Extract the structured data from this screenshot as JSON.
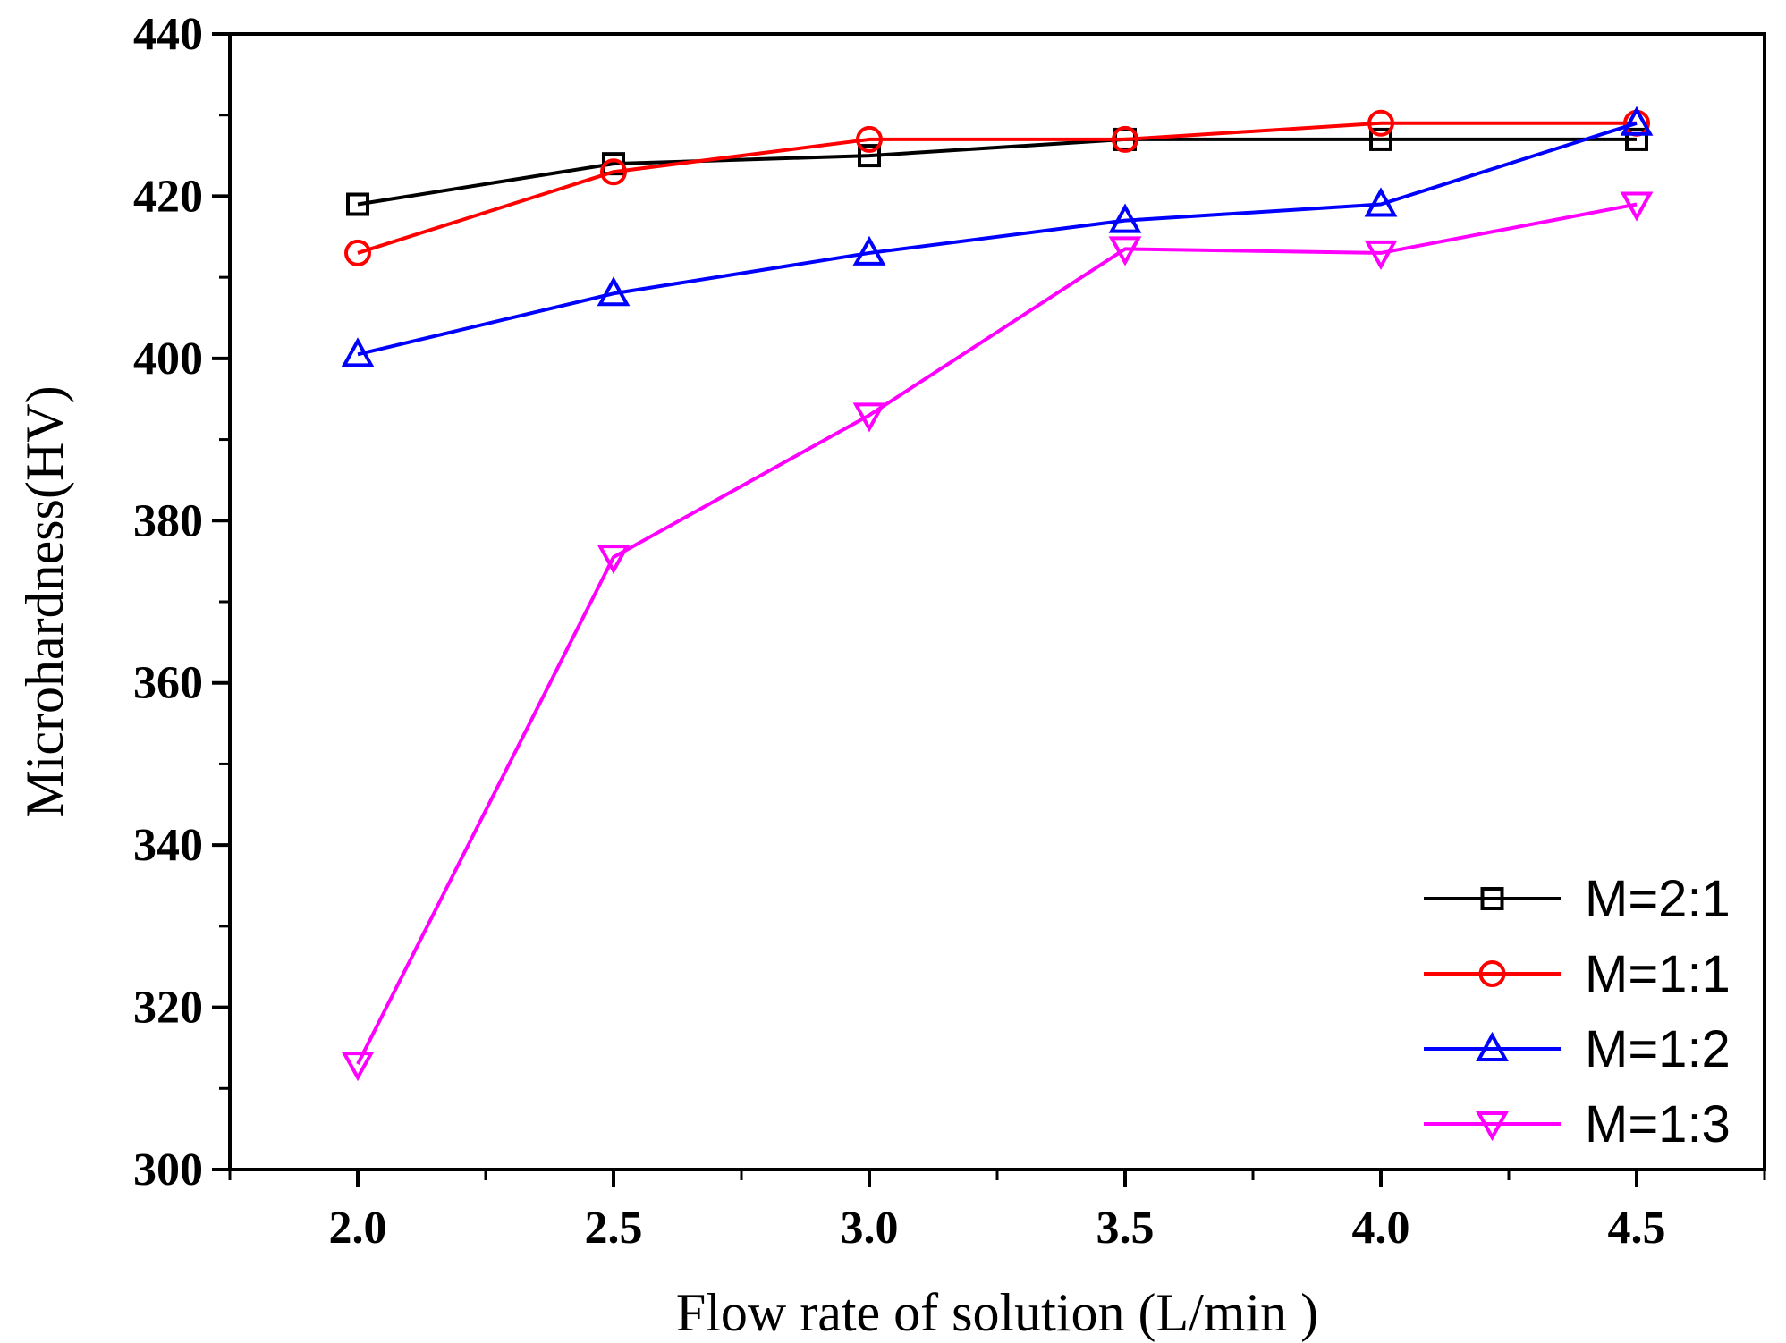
{
  "chart_data": {
    "type": "line",
    "title": "",
    "xlabel": "Flow rate of solution (L/min )",
    "ylabel": "Microhardness(HV)",
    "x": [
      2.0,
      2.5,
      3.0,
      3.5,
      4.0,
      4.5
    ],
    "xlim": [
      1.75,
      4.75
    ],
    "ylim": [
      300,
      440
    ],
    "xticks": [
      2.0,
      2.5,
      3.0,
      3.5,
      4.0,
      4.5
    ],
    "xtick_labels": [
      "2.0",
      "2.5",
      "3.0",
      "3.5",
      "4.0",
      "4.5"
    ],
    "yticks": [
      300,
      320,
      340,
      360,
      380,
      400,
      420,
      440
    ],
    "ytick_labels": [
      "300",
      "320",
      "340",
      "360",
      "380",
      "400",
      "420",
      "440"
    ],
    "grid": false,
    "legend_position": "bottom-right",
    "series": [
      {
        "name": "M=2:1",
        "color": "#000000",
        "marker": "square",
        "values": [
          419,
          424,
          425,
          427,
          427,
          427
        ]
      },
      {
        "name": "M=1:1",
        "color": "#ff0000",
        "marker": "circle",
        "values": [
          413,
          423,
          427,
          427,
          429,
          429
        ]
      },
      {
        "name": "M=1:2",
        "color": "#0000ff",
        "marker": "triangle-up",
        "values": [
          400.5,
          408,
          413,
          417,
          419,
          429
        ]
      },
      {
        "name": "M=1:3",
        "color": "#ff00ff",
        "marker": "triangle-down",
        "values": [
          313,
          375.5,
          393,
          413.5,
          413,
          419
        ]
      }
    ]
  }
}
